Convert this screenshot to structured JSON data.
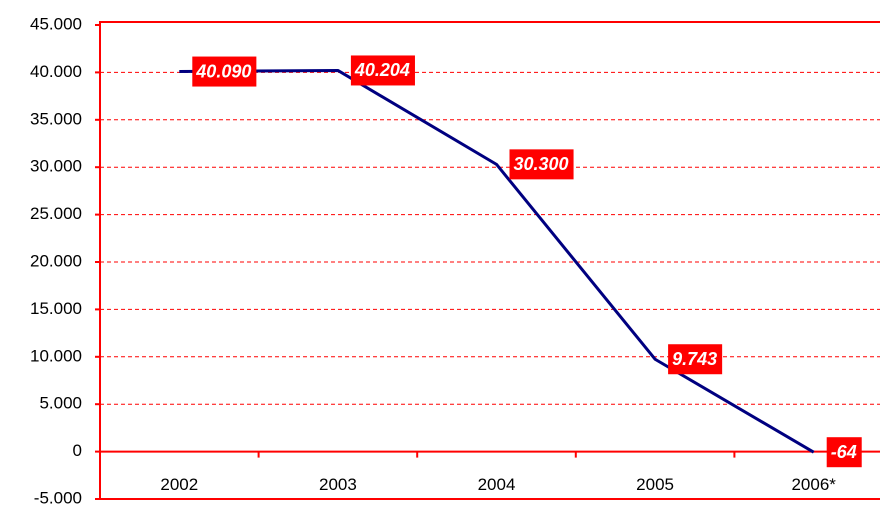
{
  "chart_data": {
    "type": "line",
    "categories": [
      "2002",
      "2003",
      "2004",
      "2005",
      "2006*"
    ],
    "series": [
      {
        "color": "#000080",
        "values": [
          40090,
          40204,
          30300,
          9743,
          -64
        ],
        "value_labels": [
          "40.090",
          "40.204",
          "30.300",
          "9.743",
          "-64"
        ]
      }
    ],
    "ylim": [
      -5000,
      45000
    ],
    "yticks": [
      {
        "value": -5000,
        "label": "-5.000"
      },
      0,
      {
        "value": 5000,
        "label": "5.000"
      },
      {
        "value": 10000,
        "label": "10.000"
      },
      {
        "value": 15000,
        "label": "15.000"
      },
      {
        "value": 20000,
        "label": "20.000"
      },
      {
        "value": 25000,
        "label": "25.000"
      },
      {
        "value": 30000,
        "label": "30.000"
      },
      {
        "value": 35000,
        "label": "35.000"
      },
      {
        "value": 40000,
        "label": "40.000"
      },
      {
        "value": 45000,
        "label": "45.000"
      }
    ],
    "grid": true,
    "grid_color": "#ff0000",
    "label_color": "#ff0000"
  }
}
